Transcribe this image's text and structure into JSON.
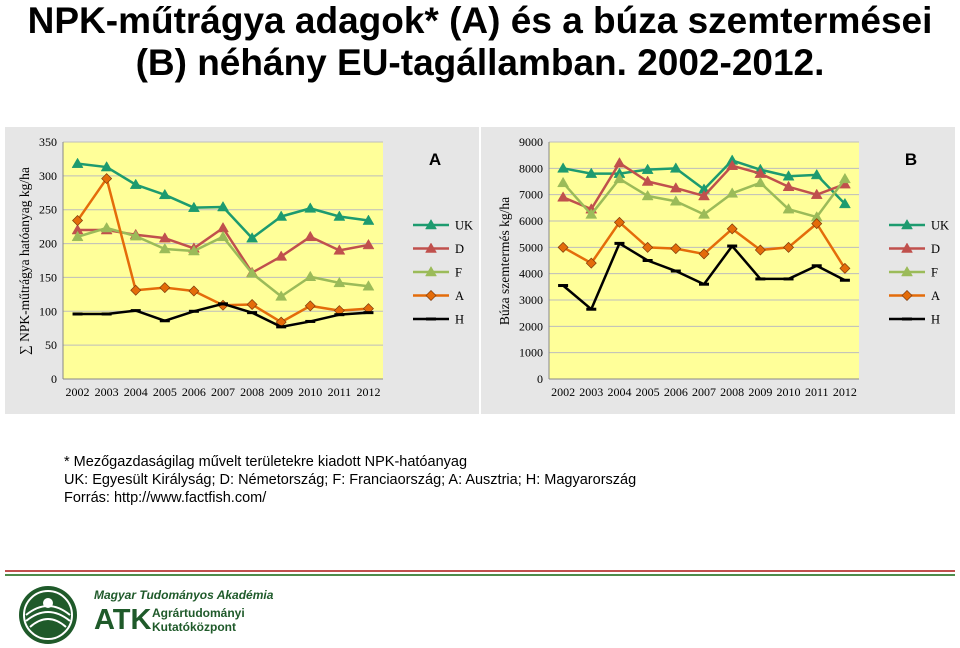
{
  "title": {
    "line1": "NPK-műtrágya adagok* (A) és a búza szemtermései",
    "line2": "(B) néhány EU-tagállamban. 2002-2012."
  },
  "notes": {
    "footnote": "* Mezőgazdaságilag művelt területekre kiadott NPK-hatóanyag",
    "legend_key": "UK: Egyesült Királyság; D: Németország; F: Franciaország; A: Ausztria; H: Magyarország",
    "source": "Forrás: http://www.factfish.com/"
  },
  "organization": {
    "name": "Magyar Tudományos Akadémia",
    "abbr": "ATK",
    "sub_line1": "Agrártudományi",
    "sub_line2": "Kutatóközpont"
  },
  "colors": {
    "plot_bg": "#ffff99",
    "outer_bg": "#e6e6e6",
    "UK": "#1d9b6f",
    "D": "#c0504d",
    "F": "#9bbb59",
    "A": "#e46c0a",
    "H": "#000000"
  },
  "chart_data": [
    {
      "type": "line",
      "panel_label": "A",
      "ylabel": "∑ NPK-műtrágya hatóanyag kg/ha",
      "ylim": [
        0,
        350
      ],
      "yticks": [
        0,
        50,
        100,
        150,
        200,
        250,
        300,
        350
      ],
      "grid": true,
      "legend": "right",
      "x": [
        "2002",
        "2003",
        "2004",
        "2005",
        "2006",
        "2007",
        "2008",
        "2009",
        "2010",
        "2011",
        "2012"
      ],
      "series": [
        {
          "name": "UK",
          "marker": "triangle",
          "values": [
            318,
            313,
            287,
            272,
            253,
            254,
            208,
            240,
            252,
            240,
            234
          ]
        },
        {
          "name": "D",
          "marker": "triangle",
          "values": [
            220,
            220,
            213,
            208,
            193,
            223,
            157,
            181,
            210,
            190,
            198
          ]
        },
        {
          "name": "F",
          "marker": "triangle",
          "values": [
            210,
            223,
            211,
            192,
            189,
            210,
            156,
            122,
            151,
            142,
            137
          ]
        },
        {
          "name": "A",
          "marker": "diamond",
          "values": [
            234,
            296,
            131,
            135,
            130,
            109,
            110,
            84,
            108,
            101,
            104
          ]
        },
        {
          "name": "H",
          "marker": "dash",
          "values": [
            96,
            96,
            101,
            86,
            100,
            111,
            98,
            77,
            85,
            95,
            98
          ]
        }
      ]
    },
    {
      "type": "line",
      "panel_label": "B",
      "ylabel": "Búza szemtermés kg/ha",
      "ylim": [
        0,
        9000
      ],
      "yticks": [
        0,
        1000,
        2000,
        3000,
        4000,
        5000,
        6000,
        7000,
        8000,
        9000
      ],
      "grid": true,
      "legend": "right",
      "x": [
        "2002",
        "2003",
        "2004",
        "2005",
        "2006",
        "2007",
        "2008",
        "2009",
        "2010",
        "2011",
        "2012"
      ],
      "series": [
        {
          "name": "UK",
          "marker": "triangle",
          "values": [
            8000,
            7800,
            7800,
            7950,
            8000,
            7200,
            8300,
            7950,
            7700,
            7750,
            6650
          ]
        },
        {
          "name": "D",
          "marker": "triangle",
          "values": [
            6900,
            6450,
            8200,
            7500,
            7250,
            6950,
            8100,
            7800,
            7300,
            7000,
            7400
          ]
        },
        {
          "name": "F",
          "marker": "triangle",
          "values": [
            7450,
            6250,
            7600,
            6950,
            6750,
            6250,
            7050,
            7450,
            6450,
            6150,
            7600
          ]
        },
        {
          "name": "A",
          "marker": "diamond",
          "values": [
            5000,
            4400,
            5950,
            5000,
            4950,
            4750,
            5700,
            4900,
            5000,
            5900,
            4200
          ]
        },
        {
          "name": "H",
          "marker": "dash",
          "values": [
            3550,
            2650,
            5150,
            4500,
            4100,
            3600,
            5050,
            3800,
            3800,
            4300,
            3750
          ]
        }
      ]
    }
  ]
}
